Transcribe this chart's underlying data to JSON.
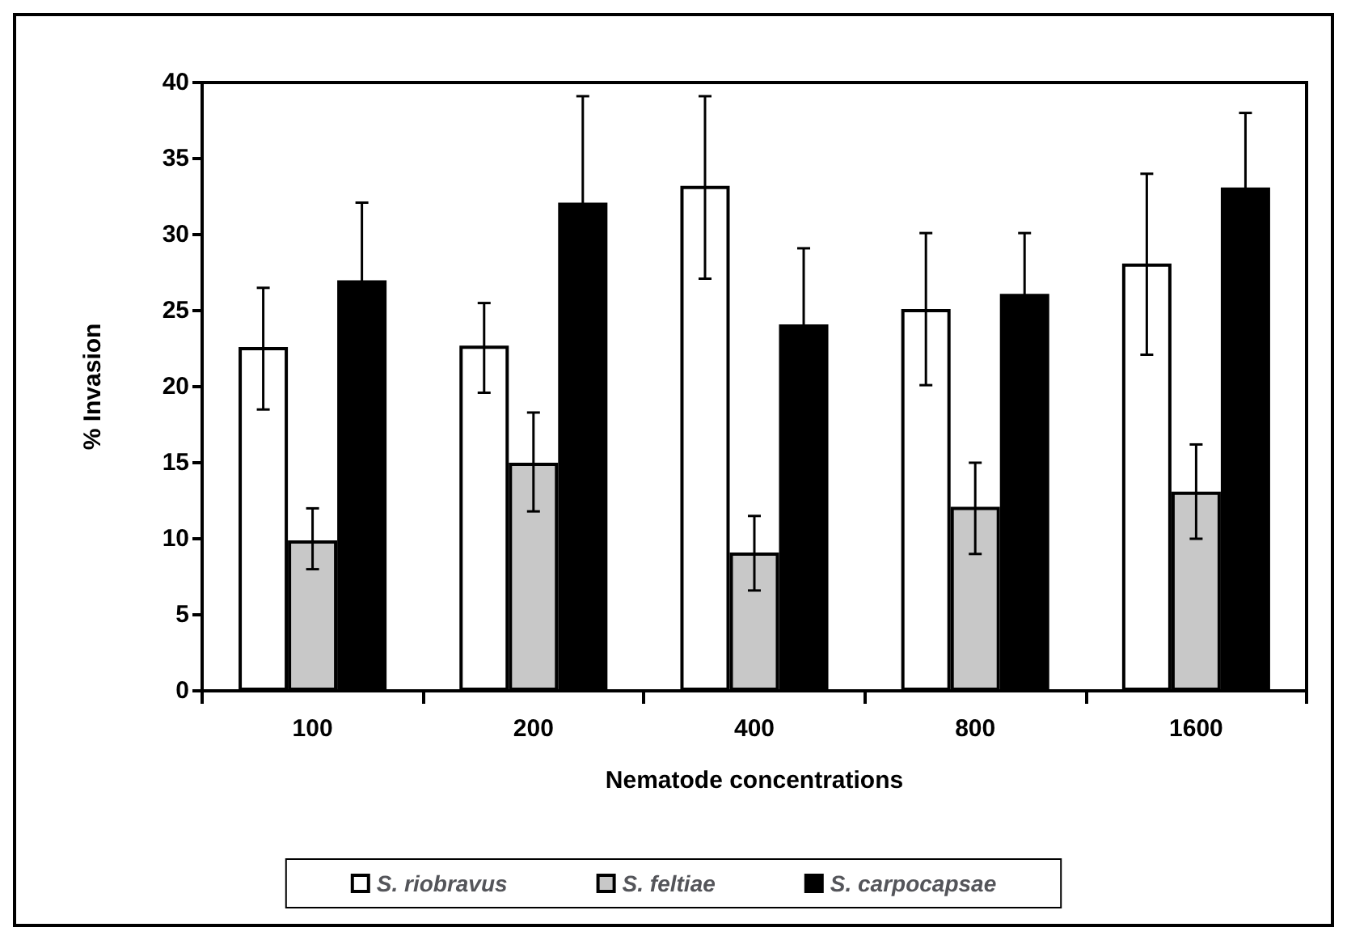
{
  "chart_data": {
    "type": "bar",
    "xlabel": "Nematode concentrations",
    "ylabel": "% Invasion",
    "categories": [
      "100",
      "200",
      "400",
      "800",
      "1600"
    ],
    "series": [
      {
        "name": "S. riobravus",
        "color": "#ffffff",
        "values": [
          22.6,
          22.7,
          33.2,
          25.1,
          28.1
        ],
        "errors": [
          [
            18.5,
            26.5
          ],
          [
            19.6,
            25.5
          ],
          [
            27.1,
            39.1
          ],
          [
            20.1,
            30.1
          ],
          [
            22.1,
            34.0
          ]
        ]
      },
      {
        "name": "S. feltiae",
        "color": "#c8c8c8",
        "values": [
          9.9,
          15.0,
          9.1,
          12.1,
          13.1
        ],
        "errors": [
          [
            8.0,
            12.0
          ],
          [
            11.8,
            18.3
          ],
          [
            6.6,
            11.5
          ],
          [
            9.0,
            15.0
          ],
          [
            10.0,
            16.2
          ]
        ]
      },
      {
        "name": "S. carpocapsae",
        "color": "#000000",
        "values": [
          27.0,
          32.1,
          24.1,
          26.1,
          33.1
        ],
        "errors": [
          5.1,
          7.0,
          5.0,
          4.0,
          4.9
        ]
      }
    ],
    "ylim": [
      0,
      40
    ],
    "yticks": [
      0,
      5,
      10,
      15,
      20,
      25,
      30,
      35,
      40
    ],
    "grid": false,
    "legend": "bottom"
  }
}
